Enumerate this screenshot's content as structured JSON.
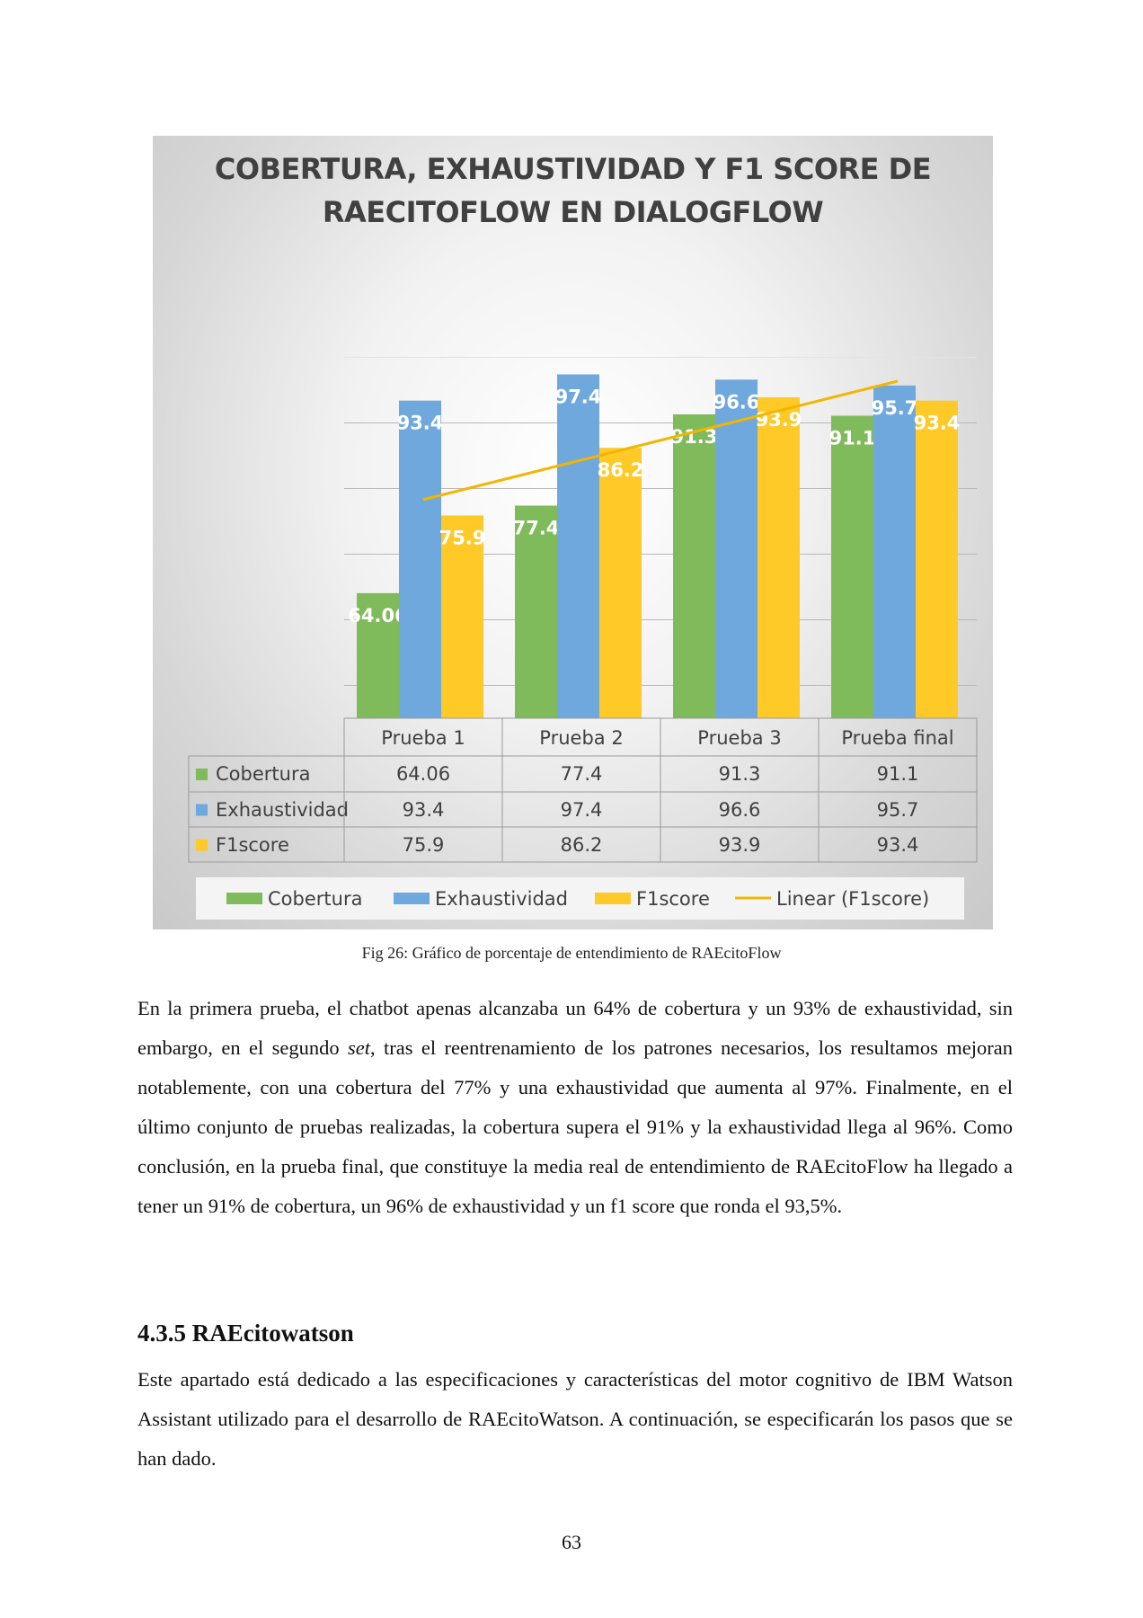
{
  "chart_data": {
    "type": "bar",
    "title_lines": [
      "COBERTURA, EXHAUSTIVIDAD Y F1 SCORE DE",
      "RAECITOFLOW EN DIALOGFLOW"
    ],
    "categories": [
      "Prueba 1",
      "Prueba 2",
      "Prueba 3",
      "Prueba final"
    ],
    "series": [
      {
        "name": "Cobertura",
        "values": [
          64.06,
          77.4,
          91.3,
          91.1
        ],
        "color": "#7fba5b"
      },
      {
        "name": "Exhaustividad",
        "values": [
          93.4,
          97.4,
          96.6,
          95.7
        ],
        "color": "#6fa8dc"
      },
      {
        "name": "F1score",
        "values": [
          75.9,
          86.2,
          93.9,
          93.4
        ],
        "color": "#ffc928"
      }
    ],
    "value_labels": [
      [
        "64.06",
        "77.4",
        "91.3",
        "91.1"
      ],
      [
        "93.4",
        "97.4",
        "96.6",
        "95.7"
      ],
      [
        "75.9",
        "86.2",
        "93.9",
        "93.4"
      ]
    ],
    "trendline": {
      "name": "Linear (F1score)",
      "series": "F1score",
      "color": "#f2b600"
    },
    "ylim": [
      45,
      105
    ],
    "grid": true,
    "legend": [
      "Cobertura",
      "Exhaustividad",
      "F1score",
      "Linear (F1score)"
    ],
    "legend_position": "bottom",
    "data_table": true
  },
  "caption": "Fig 26: Gráfico de porcentaje de entendimiento de RAEcitoFlow",
  "paragraph1": {
    "before_italic": "En la primera prueba, el chatbot apenas alcanzaba un 64% de cobertura y un 93% de exhaustividad, sin embargo, en el segundo ",
    "italic": "set",
    "after_italic": ", tras el reentrenamiento de los patrones necesarios, los resultamos mejoran notablemente, con una cobertura del 77% y una exhaustividad que aumenta al 97%. Finalmente, en el último conjunto de pruebas realizadas, la cobertura supera el 91% y la exhaustividad llega al 96%. Como conclusión, en la prueba final, que constituye la media real de entendimiento de RAEcitoFlow ha llegado a tener un 91% de cobertura, un 96% de exhaustividad y un f1 score que ronda el 93,5%."
  },
  "section": {
    "heading": "4.3.5 RAEcitowatson",
    "paragraph": "Este apartado está dedicado a las especificaciones y características del motor cognitivo de IBM Watson Assistant utilizado para el desarrollo de RAEcitoWatson. A continuación, se especificarán los pasos que se han dado."
  },
  "page_number": "63"
}
